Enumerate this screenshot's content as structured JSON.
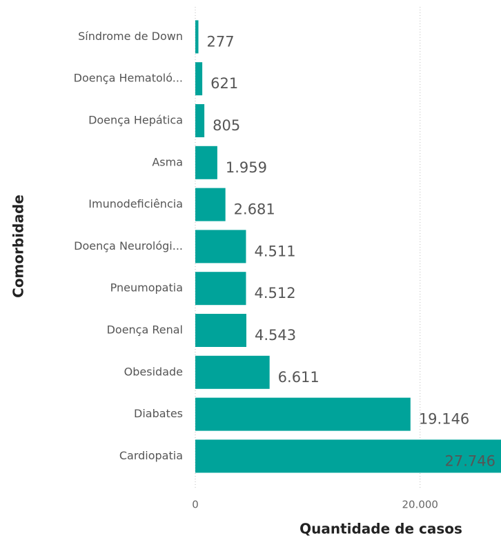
{
  "chart_data": {
    "type": "hbar",
    "x_label": "Quantidade de casos",
    "y_label": "Comorbidade",
    "categories": [
      "Síndrome de Down",
      "Doença Hematoló...",
      "Doença Hepática",
      "Asma",
      "Imunodeficiência",
      "Doença Neurológi...",
      "Pneumopatia",
      "Doença Renal",
      "Obesidade",
      "Diabates",
      "Cardiopatia"
    ],
    "values": [
      277,
      621,
      805,
      1959,
      2681,
      4511,
      4512,
      4543,
      6611,
      19146,
      27746
    ],
    "value_labels": [
      "277",
      "621",
      "805",
      "1.959",
      "2.681",
      "4.511",
      "4.512",
      "4.543",
      "6.611",
      "19.146",
      "27.746"
    ],
    "color": "#00a39a",
    "xlim": [
      0,
      27200
    ],
    "xticks": [
      0,
      {
        "value": 20000,
        "label": "20.000"
      }
    ],
    "grid": true
  }
}
